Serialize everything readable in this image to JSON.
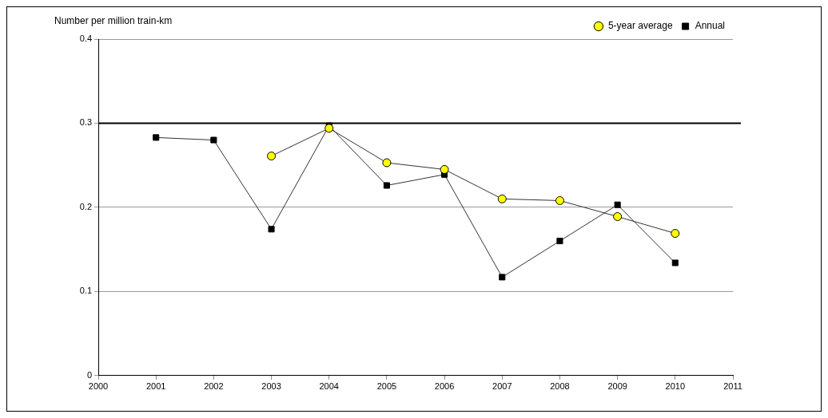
{
  "chart_data": {
    "type": "line",
    "ylabel": "Number per million train-km",
    "x": [
      2001,
      2002,
      2003,
      2004,
      2005,
      2006,
      2007,
      2008,
      2009,
      2010
    ],
    "series": [
      {
        "name": "Annual",
        "color": "#000000",
        "marker": "square",
        "values": [
          0.283,
          0.28,
          0.174,
          0.297,
          0.226,
          0.239,
          0.117,
          0.16,
          0.203,
          0.134
        ]
      },
      {
        "name": "5-year average",
        "color": "#ffff00",
        "marker": "circle",
        "values": [
          null,
          null,
          0.261,
          0.294,
          0.253,
          0.245,
          0.21,
          0.208,
          0.189,
          0.169
        ]
      }
    ],
    "xlim": [
      2000,
      2011
    ],
    "xticks": [
      2000,
      2001,
      2002,
      2003,
      2004,
      2005,
      2006,
      2007,
      2008,
      2009,
      2010,
      2011
    ],
    "ylim": [
      0,
      0.4
    ],
    "yticks": [
      0,
      0.1,
      0.2,
      0.3,
      0.4
    ],
    "grid": "y",
    "legend": "top right",
    "ref_lines": [
      {
        "axis": "y",
        "value": 0.3,
        "color": "#000000"
      }
    ]
  }
}
